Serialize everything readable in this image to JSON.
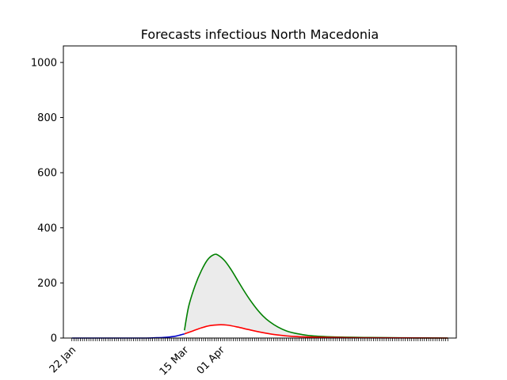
{
  "chart_data": {
    "type": "line",
    "title": "Forecasts infectious North Macedonia",
    "xlabel": "",
    "ylabel": "",
    "x_axis": "date",
    "xlim": [
      "2020-01-18",
      "2020-07-21"
    ],
    "ylim": [
      0,
      1060
    ],
    "y_ticks": [
      0,
      200,
      400,
      600,
      800,
      1000
    ],
    "x_tick_labels": [
      {
        "date": "2020-01-22",
        "label": "22 Jan"
      },
      {
        "date": "2020-03-15",
        "label": "15 Mar"
      },
      {
        "date": "2020-04-01",
        "label": "01 Apr"
      }
    ],
    "grid": false,
    "legend": "none",
    "band": {
      "lower": "lower",
      "upper": "upper",
      "color": "#ebebeb"
    },
    "series": [
      {
        "id": "observed",
        "color": "#0000cc",
        "points": [
          [
            "2020-01-22",
            0
          ],
          [
            "2020-02-10",
            0
          ],
          [
            "2020-02-25",
            0
          ],
          [
            "2020-03-01",
            1
          ],
          [
            "2020-03-05",
            2
          ],
          [
            "2020-03-08",
            4
          ],
          [
            "2020-03-11",
            7
          ],
          [
            "2020-03-13",
            11
          ],
          [
            "2020-03-15",
            15
          ]
        ]
      },
      {
        "id": "upper",
        "color": "#008000",
        "points": [
          [
            "2020-03-15",
            28
          ],
          [
            "2020-03-17",
            115
          ],
          [
            "2020-03-20",
            190
          ],
          [
            "2020-03-23",
            245
          ],
          [
            "2020-03-26",
            285
          ],
          [
            "2020-03-29",
            303
          ],
          [
            "2020-03-31",
            300
          ],
          [
            "2020-04-03",
            280
          ],
          [
            "2020-04-06",
            248
          ],
          [
            "2020-04-09",
            210
          ],
          [
            "2020-04-12",
            172
          ],
          [
            "2020-04-15",
            137
          ],
          [
            "2020-04-18",
            106
          ],
          [
            "2020-04-21",
            80
          ],
          [
            "2020-04-24",
            60
          ],
          [
            "2020-04-28",
            40
          ],
          [
            "2020-05-02",
            26
          ],
          [
            "2020-05-07",
            16
          ],
          [
            "2020-05-14",
            8
          ],
          [
            "2020-05-24",
            4
          ],
          [
            "2020-06-08",
            2
          ],
          [
            "2020-06-25",
            1
          ],
          [
            "2020-07-17",
            0
          ]
        ]
      },
      {
        "id": "lower",
        "color": "#ff0000",
        "points": [
          [
            "2020-03-15",
            15
          ],
          [
            "2020-03-19",
            26
          ],
          [
            "2020-03-23",
            37
          ],
          [
            "2020-03-27",
            45
          ],
          [
            "2020-03-31",
            48
          ],
          [
            "2020-04-04",
            47
          ],
          [
            "2020-04-09",
            40
          ],
          [
            "2020-04-14",
            31
          ],
          [
            "2020-04-20",
            21
          ],
          [
            "2020-04-27",
            12
          ],
          [
            "2020-05-05",
            6
          ],
          [
            "2020-05-16",
            3
          ],
          [
            "2020-06-05",
            1
          ],
          [
            "2020-07-17",
            0
          ]
        ]
      }
    ]
  }
}
